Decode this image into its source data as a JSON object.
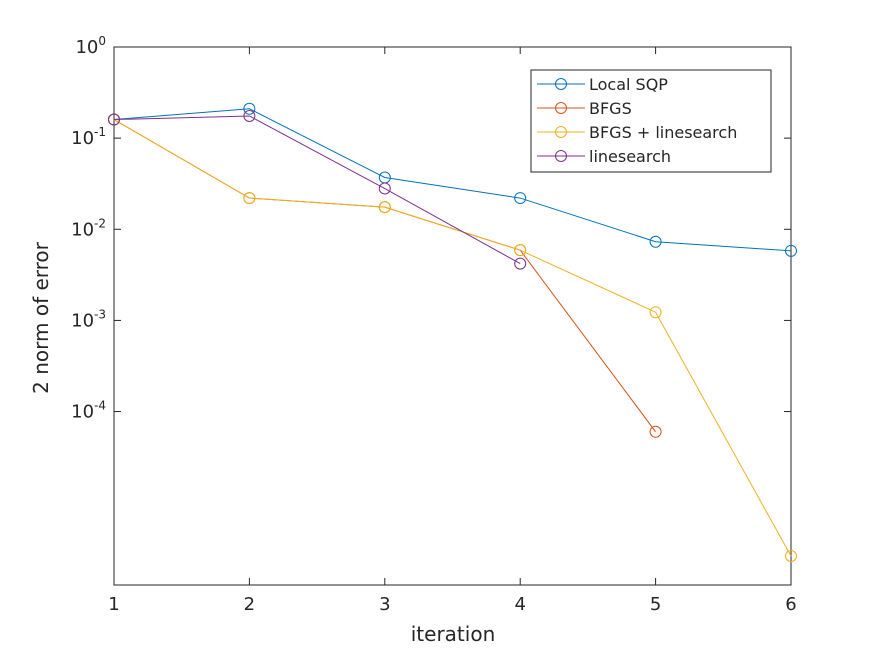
{
  "chart_data": {
    "type": "line",
    "xlabel": "iteration",
    "ylabel": "2 norm of error",
    "xlim": [
      1,
      6
    ],
    "ylim": [
      1.25e-06,
      1
    ],
    "yscale": "log",
    "grid": false,
    "legend_position": "top-right",
    "x_ticks": [
      1,
      2,
      3,
      4,
      5,
      6
    ],
    "y_ticks": [
      {
        "value": 1,
        "base": "10",
        "exp": "0"
      },
      {
        "value": 0.1,
        "base": "10",
        "exp": "-1"
      },
      {
        "value": 0.01,
        "base": "10",
        "exp": "-2"
      },
      {
        "value": 0.001,
        "base": "10",
        "exp": "-3"
      },
      {
        "value": 0.0001,
        "base": "10",
        "exp": "-4"
      }
    ],
    "series": [
      {
        "name": "Local SQP",
        "color": "#0072BD",
        "marker": "circle",
        "x": [
          1,
          2,
          3,
          4,
          5,
          6
        ],
        "y": [
          0.16,
          0.21,
          0.037,
          0.022,
          0.0073,
          0.0058
        ]
      },
      {
        "name": "BFGS",
        "color": "#D95319",
        "marker": "circle",
        "x": [
          1,
          2,
          3,
          4,
          5
        ],
        "y": [
          0.16,
          0.022,
          0.0175,
          0.0059,
          6e-05
        ]
      },
      {
        "name": "BFGS + linesearch",
        "color": "#EDB120",
        "marker": "circle",
        "x": [
          1,
          2,
          3,
          4,
          5,
          6
        ],
        "y": [
          0.16,
          0.022,
          0.0175,
          0.0059,
          0.00123,
          2.6e-06
        ]
      },
      {
        "name": "linesearch",
        "color": "#7E2F8E",
        "marker": "circle",
        "x": [
          1,
          2,
          3,
          4
        ],
        "y": [
          0.16,
          0.175,
          0.028,
          0.0042
        ]
      }
    ]
  }
}
